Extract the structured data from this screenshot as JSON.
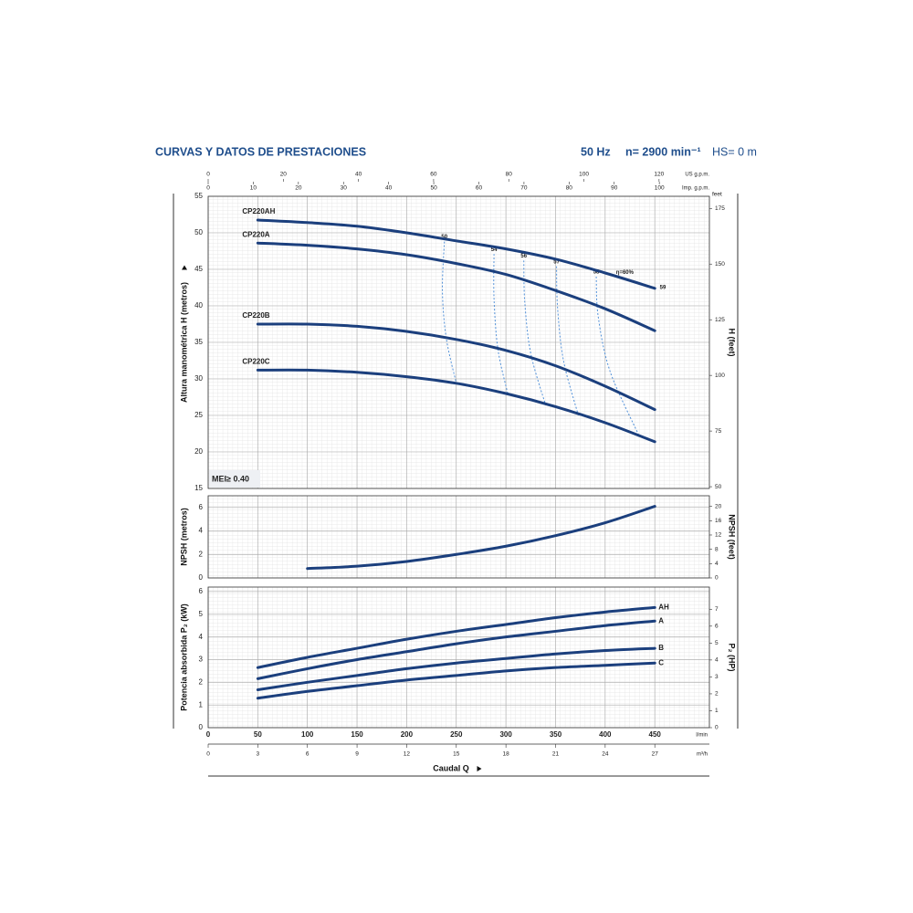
{
  "header": {
    "title": "CURVAS Y DATOS DE PRESTACIONES",
    "frequency": "50 Hz",
    "speed": "n= 2900 min⁻¹",
    "hs": "HS= 0 m"
  },
  "chart_data": [
    {
      "type": "line",
      "ylabel": "Altura manométrica H  (metros)",
      "y2label": "H  (feet)",
      "y2unit": "feet",
      "note": "MEI≥ 0.40",
      "xlim": [
        0,
        505
      ],
      "x": [
        50,
        100,
        150,
        200,
        250,
        300,
        350,
        400,
        450
      ],
      "ylim": [
        15,
        55
      ],
      "yticks": [
        15,
        20,
        25,
        30,
        35,
        40,
        45,
        50,
        55
      ],
      "y2lim": [
        49.21,
        180.45
      ],
      "y2ticks": [
        50,
        75,
        100,
        125,
        150,
        175
      ],
      "label_position": "start",
      "series": [
        {
          "name": "CP220AH",
          "color": "#1b3f7d",
          "values": [
            51.75,
            51.4,
            50.9,
            50.0,
            48.9,
            47.8,
            46.4,
            44.5,
            42.4
          ]
        },
        {
          "name": "CP220A",
          "color": "#1b3f7d",
          "values": [
            48.6,
            48.3,
            47.8,
            47.0,
            45.8,
            44.3,
            42.1,
            39.6,
            36.6
          ]
        },
        {
          "name": "CP220B",
          "color": "#1b3f7d",
          "values": [
            37.5,
            37.5,
            37.2,
            36.5,
            35.4,
            33.9,
            31.8,
            29.0,
            25.8
          ]
        },
        {
          "name": "CP220C",
          "color": "#1b3f7d",
          "values": [
            31.2,
            31.2,
            30.9,
            30.3,
            29.4,
            28.0,
            26.2,
            24.0,
            21.4
          ]
        }
      ],
      "efficiency_color": "#4f8fd8",
      "efficiency_lines": [
        {
          "label": "50",
          "x": [
            238,
            236,
            240,
            250
          ],
          "y": [
            48.8,
            42.0,
            35.5,
            29.4
          ]
        },
        {
          "label": "54",
          "x": [
            288,
            288,
            292,
            302
          ],
          "y": [
            47.1,
            41.0,
            34.0,
            27.9
          ]
        },
        {
          "label": "56",
          "x": [
            318,
            319,
            325,
            340
          ],
          "y": [
            46.2,
            40.5,
            33.5,
            26.4
          ]
        },
        {
          "label": "57",
          "x": [
            351,
            352,
            358,
            373
          ],
          "y": [
            45.4,
            39.8,
            32.5,
            25.0
          ]
        },
        {
          "label": "58",
          "x": [
            391,
            393,
            405,
            434
          ],
          "y": [
            44.0,
            38.5,
            31.0,
            22.25
          ]
        }
      ],
      "annotations": [
        {
          "text": "η=60%",
          "x": 411,
          "y": 44.6
        },
        {
          "text": "59",
          "x": 455,
          "y": 42.5
        }
      ],
      "top_axes": [
        {
          "label": "US g.p.m.",
          "xlim": [
            0,
            133.4
          ],
          "xticks": [
            0,
            20,
            40,
            60,
            80,
            100,
            120
          ]
        },
        {
          "label": "Imp. g.p.m.",
          "xlim": [
            0,
            111.1
          ],
          "xticks": [
            0,
            10,
            20,
            30,
            40,
            50,
            60,
            70,
            80,
            90,
            100
          ]
        }
      ]
    },
    {
      "type": "line",
      "ylabel": "NPSH  (metros)",
      "y2label": "NPSH  (feet)",
      "xlim": [
        0,
        505
      ],
      "x": [
        100,
        150,
        200,
        250,
        300,
        350,
        400,
        450
      ],
      "ylim": [
        0,
        7
      ],
      "yticks": [
        0,
        2,
        4,
        6
      ],
      "y2lim": [
        0,
        22.97
      ],
      "y2ticks": [
        0,
        4,
        8,
        12,
        16,
        20
      ],
      "series": [
        {
          "color": "#1b3f7d",
          "values": [
            0.8,
            1.0,
            1.4,
            2.0,
            2.7,
            3.6,
            4.7,
            6.1
          ]
        }
      ]
    },
    {
      "type": "line",
      "ylabel": "Potencia absorbida  P₂  (kW)",
      "y2label": "P₂  (HP)",
      "xlim": [
        0,
        505
      ],
      "x": [
        50,
        100,
        150,
        200,
        250,
        300,
        350,
        400,
        450
      ],
      "ylim": [
        0,
        6.2
      ],
      "yticks": [
        0,
        1,
        2,
        3,
        4,
        5,
        6
      ],
      "y2lim": [
        0,
        8.31
      ],
      "y2ticks": [
        0,
        1,
        2,
        3,
        4,
        5,
        6,
        7
      ],
      "label_position": "end",
      "series": [
        {
          "name": "AH",
          "color": "#1b3f7d",
          "values": [
            2.65,
            3.1,
            3.5,
            3.9,
            4.25,
            4.55,
            4.85,
            5.1,
            5.3
          ]
        },
        {
          "name": "A",
          "color": "#1b3f7d",
          "values": [
            2.16,
            2.6,
            3.0,
            3.35,
            3.7,
            4.0,
            4.25,
            4.5,
            4.7
          ]
        },
        {
          "name": "B",
          "color": "#1b3f7d",
          "values": [
            1.67,
            2.0,
            2.3,
            2.6,
            2.85,
            3.05,
            3.25,
            3.4,
            3.5
          ]
        },
        {
          "name": "C",
          "color": "#1b3f7d",
          "values": [
            1.3,
            1.6,
            1.85,
            2.1,
            2.3,
            2.5,
            2.65,
            2.75,
            2.85
          ]
        }
      ],
      "xlabel": "Caudal Q",
      "bottom_axes": [
        {
          "label": "l/min",
          "xlim": [
            0,
            505
          ],
          "xticks": [
            0,
            50,
            100,
            150,
            200,
            250,
            300,
            350,
            400,
            450
          ]
        },
        {
          "label": "m³/h",
          "xlim": [
            0,
            30.3
          ],
          "xticks": [
            0,
            3,
            6,
            9,
            12,
            15,
            18,
            21,
            24,
            27
          ]
        }
      ]
    }
  ]
}
